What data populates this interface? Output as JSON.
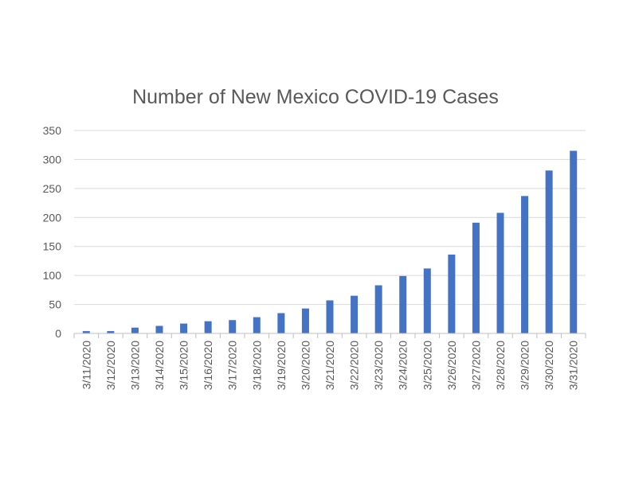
{
  "chart_data": {
    "type": "bar",
    "title": "Number of New Mexico COVID-19 Cases",
    "xlabel": "",
    "ylabel": "",
    "categories": [
      "3/11/2020",
      "3/12/2020",
      "3/13/2020",
      "3/14/2020",
      "3/15/2020",
      "3/16/2020",
      "3/17/2020",
      "3/18/2020",
      "3/19/2020",
      "3/20/2020",
      "3/21/2020",
      "3/22/2020",
      "3/23/2020",
      "3/24/2020",
      "3/25/2020",
      "3/26/2020",
      "3/27/2020",
      "3/28/2020",
      "3/29/2020",
      "3/30/2020",
      "3/31/2020"
    ],
    "values": [
      4,
      4,
      10,
      13,
      17,
      21,
      23,
      28,
      35,
      43,
      57,
      65,
      83,
      99,
      112,
      136,
      191,
      208,
      237,
      281,
      315
    ],
    "ylim": [
      0,
      350
    ],
    "yticks": [
      0,
      50,
      100,
      150,
      200,
      250,
      300,
      350
    ],
    "grid": true,
    "legend": "none",
    "colors": {
      "bar": "#4472C4",
      "grid": "#D9D9D9",
      "axis": "#BFBFBF",
      "text": "#595959"
    }
  }
}
